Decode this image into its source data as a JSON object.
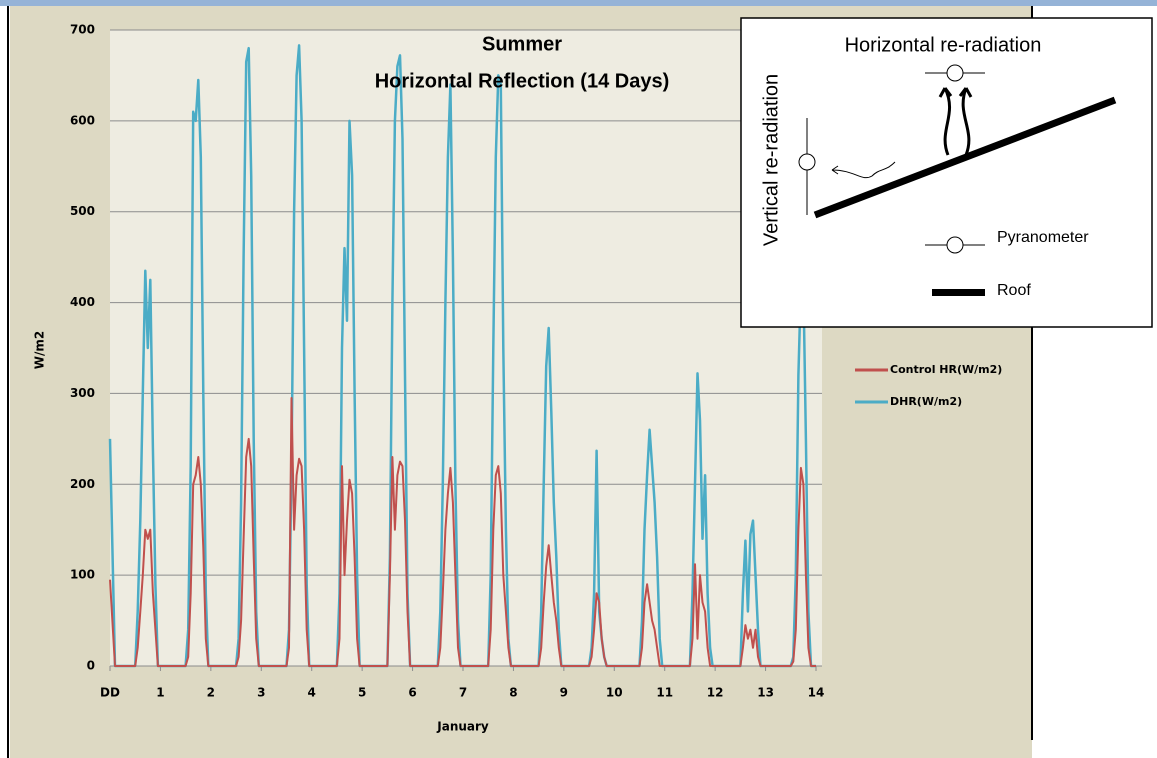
{
  "chart_data": {
    "type": "line",
    "title": "Summer",
    "subtitle": "Horizontal Reflection (14 Days)",
    "x_label": "January",
    "y_label": "W/m2",
    "x": [
      0,
      0.1,
      0.5,
      0.55,
      0.6,
      0.65,
      0.7,
      0.75,
      0.8,
      0.85,
      0.9,
      0.95,
      1.5,
      1.55,
      1.6,
      1.65,
      1.7,
      1.75,
      1.8,
      1.85,
      1.9,
      1.95,
      2.5,
      2.55,
      2.6,
      2.65,
      2.7,
      2.75,
      2.8,
      2.85,
      2.9,
      2.95,
      3.5,
      3.55,
      3.6,
      3.65,
      3.7,
      3.75,
      3.8,
      3.85,
      3.9,
      3.95,
      4.5,
      4.55,
      4.6,
      4.65,
      4.7,
      4.75,
      4.8,
      4.85,
      4.9,
      4.95,
      5.5,
      5.55,
      5.6,
      5.65,
      5.7,
      5.75,
      5.8,
      5.85,
      5.9,
      5.95,
      6.5,
      6.55,
      6.6,
      6.65,
      6.7,
      6.75,
      6.8,
      6.85,
      6.9,
      6.95,
      7.5,
      7.55,
      7.6,
      7.65,
      7.7,
      7.75,
      7.8,
      7.85,
      7.9,
      7.95,
      8.5,
      8.55,
      8.6,
      8.65,
      8.7,
      8.75,
      8.8,
      8.85,
      8.9,
      8.95,
      9.5,
      9.55,
      9.6,
      9.65,
      9.7,
      9.75,
      9.8,
      9.85,
      9.9,
      9.95,
      10.5,
      10.55,
      10.6,
      10.65,
      10.7,
      10.75,
      10.8,
      10.85,
      10.9,
      10.95,
      11.5,
      11.55,
      11.6,
      11.65,
      11.7,
      11.75,
      11.8,
      11.85,
      11.9,
      11.95,
      12.5,
      12.55,
      12.6,
      12.65,
      12.7,
      12.75,
      12.8,
      12.85,
      12.9,
      12.95,
      13.5,
      13.55,
      13.6,
      13.65,
      13.7,
      13.75,
      13.8,
      13.85,
      13.9,
      13.95,
      14
    ],
    "series": [
      {
        "name": "Control HR(W/m2)",
        "color": "#c0504d",
        "values": [
          95,
          0,
          0,
          20,
          60,
          100,
          150,
          140,
          150,
          80,
          40,
          0,
          0,
          10,
          80,
          200,
          210,
          230,
          200,
          130,
          30,
          0,
          0,
          10,
          50,
          140,
          230,
          250,
          220,
          120,
          30,
          0,
          0,
          20,
          295,
          150,
          210,
          228,
          220,
          150,
          40,
          0,
          0,
          30,
          220,
          100,
          160,
          205,
          190,
          120,
          30,
          0,
          0,
          100,
          230,
          150,
          210,
          225,
          220,
          160,
          60,
          0,
          0,
          20,
          80,
          150,
          190,
          218,
          180,
          100,
          20,
          0,
          0,
          40,
          150,
          210,
          220,
          190,
          100,
          60,
          20,
          0,
          0,
          20,
          70,
          110,
          133,
          100,
          70,
          50,
          20,
          0,
          0,
          10,
          40,
          80,
          70,
          30,
          10,
          0,
          0,
          0,
          0,
          20,
          70,
          90,
          70,
          50,
          40,
          20,
          0,
          0,
          0,
          30,
          112,
          30,
          100,
          70,
          60,
          20,
          0,
          0,
          0,
          20,
          45,
          30,
          40,
          20,
          40,
          10,
          0,
          0,
          0,
          5,
          40,
          150,
          218,
          200,
          100,
          20,
          0,
          0,
          0
        ]
      },
      {
        "name": "DHR(W/m2)",
        "color": "#4bacc6",
        "values": [
          250,
          0,
          0,
          60,
          160,
          300,
          435,
          350,
          425,
          240,
          90,
          0,
          0,
          40,
          220,
          610,
          600,
          645,
          560,
          300,
          80,
          0,
          0,
          30,
          180,
          450,
          665,
          680,
          540,
          250,
          60,
          0,
          0,
          40,
          220,
          500,
          650,
          683,
          600,
          350,
          90,
          0,
          0,
          80,
          350,
          460,
          380,
          600,
          540,
          300,
          100,
          0,
          0,
          120,
          400,
          600,
          660,
          672,
          580,
          320,
          80,
          0,
          0,
          60,
          200,
          400,
          560,
          640,
          450,
          200,
          50,
          0,
          0,
          100,
          350,
          560,
          650,
          640,
          350,
          150,
          30,
          0,
          0,
          60,
          200,
          330,
          372,
          280,
          180,
          120,
          40,
          0,
          0,
          20,
          80,
          237,
          60,
          30,
          10,
          0,
          0,
          0,
          0,
          50,
          150,
          210,
          260,
          220,
          180,
          120,
          30,
          0,
          0,
          80,
          200,
          322,
          270,
          140,
          210,
          80,
          20,
          0,
          0,
          80,
          138,
          60,
          145,
          160,
          100,
          40,
          0,
          0,
          0,
          10,
          100,
          320,
          420,
          420,
          250,
          60,
          0,
          0,
          0
        ]
      }
    ],
    "xlim": [
      0,
      14
    ],
    "xticks": [
      {
        "value": 0,
        "label": "DD"
      },
      1,
      2,
      3,
      4,
      5,
      6,
      7,
      8,
      9,
      10,
      11,
      12,
      13,
      14
    ],
    "ylim": [
      0,
      700
    ],
    "yticks": [
      0,
      100,
      200,
      300,
      400,
      500,
      600,
      700
    ],
    "grid": true,
    "legend": "right"
  },
  "inset": {
    "horizontal_label": "Horizontal re-radiation",
    "vertical_label": "Vertical re-radiation",
    "legend": [
      "Pyranometer",
      "Roof"
    ]
  }
}
